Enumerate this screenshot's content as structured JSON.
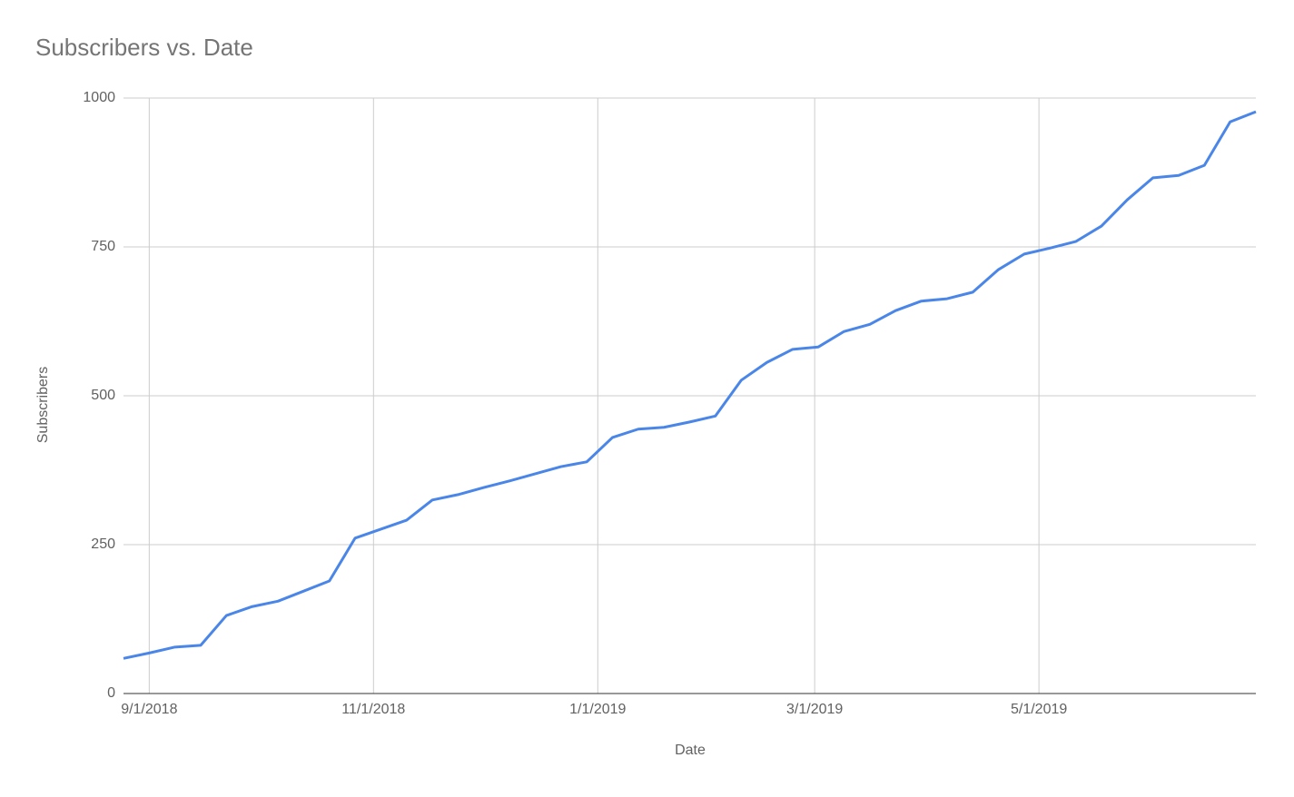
{
  "chart_data": {
    "type": "line",
    "title": "Subscribers vs. Date",
    "x_label": "Date",
    "y_label": "Subscribers",
    "x": [
      "2018-08-25",
      "2018-09-01",
      "2018-09-08",
      "2018-09-15",
      "2018-09-22",
      "2018-09-29",
      "2018-10-06",
      "2018-10-13",
      "2018-10-20",
      "2018-10-27",
      "2018-11-03",
      "2018-11-10",
      "2018-11-17",
      "2018-11-24",
      "2018-12-01",
      "2018-12-08",
      "2018-12-15",
      "2018-12-22",
      "2018-12-29",
      "2019-01-05",
      "2019-01-12",
      "2019-01-19",
      "2019-01-26",
      "2019-02-02",
      "2019-02-09",
      "2019-02-16",
      "2019-02-23",
      "2019-03-02",
      "2019-03-09",
      "2019-03-16",
      "2019-03-23",
      "2019-03-30",
      "2019-04-06",
      "2019-04-13",
      "2019-04-20",
      "2019-04-27",
      "2019-05-04",
      "2019-05-11",
      "2019-05-18",
      "2019-05-25",
      "2019-06-01",
      "2019-06-08",
      "2019-06-15",
      "2019-06-22",
      "2019-06-29"
    ],
    "series": [
      {
        "name": "Subscribers",
        "color": "#4a86e8",
        "values": [
          59,
          68,
          78,
          81,
          131,
          146,
          155,
          172,
          189,
          261,
          276,
          291,
          325,
          334,
          346,
          357,
          369,
          381,
          389,
          430,
          444,
          447,
          456,
          466,
          526,
          556,
          578,
          582,
          608,
          620,
          643,
          659,
          663,
          674,
          712,
          738,
          748,
          759,
          785,
          829,
          866,
          870,
          887,
          960,
          977
        ]
      }
    ],
    "xlim": [
      "2018-08-25",
      "2019-06-29"
    ],
    "xticks": [
      {
        "value": "2018-09-01",
        "label": "9/1/2018"
      },
      {
        "value": "2018-11-01",
        "label": "11/1/2018"
      },
      {
        "value": "2019-01-01",
        "label": "1/1/2019"
      },
      {
        "value": "2019-03-01",
        "label": "3/1/2019"
      },
      {
        "value": "2019-05-01",
        "label": "5/1/2019"
      }
    ],
    "ylim": [
      0,
      1000
    ],
    "yticks": [
      0,
      250,
      500,
      750,
      1000
    ],
    "grid": true
  }
}
